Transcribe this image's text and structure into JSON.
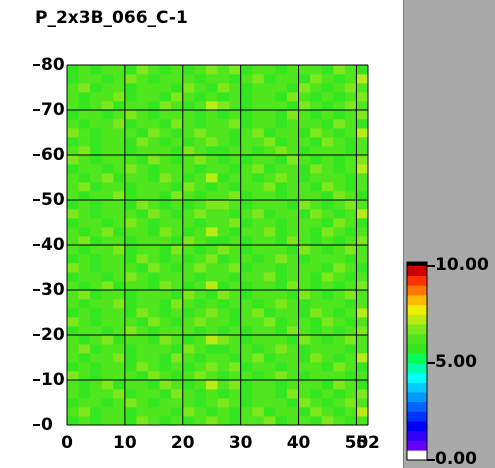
{
  "chart_data": {
    "type": "heatmap",
    "title": "P_2x3B_066_C-1",
    "xlim": [
      0,
      52
    ],
    "ylim": [
      0,
      80
    ],
    "xticks": [
      0,
      10,
      20,
      30,
      40,
      50,
      52
    ],
    "yticks": [
      0,
      10,
      20,
      30,
      40,
      50,
      60,
      70,
      80
    ],
    "grid": true,
    "clim": [
      0,
      10
    ],
    "cticks": [
      {
        "value": 0,
        "label": "0.00"
      },
      {
        "value": 5,
        "label": "5.00"
      },
      {
        "value": 10,
        "label": "10.00"
      }
    ],
    "colorscale": [
      "#ffffff",
      "#6600ff",
      "#3300ff",
      "#0000ff",
      "#0033ff",
      "#0066ff",
      "#0099ff",
      "#00ccff",
      "#00ffff",
      "#00ffaa",
      "#00ff55",
      "#33e620",
      "#4fe61e",
      "#7ee81c",
      "#b8ec14",
      "#eeee00",
      "#ffbb00",
      "#ff7700",
      "#ff3300",
      "#cc0000"
    ],
    "z": [
      [
        5.9,
        6.2,
        5.7,
        6.4,
        6.0,
        5.8,
        6.6,
        6.1,
        5.9,
        6.3,
        5.6,
        6.0,
        6.8,
        6.1,
        5.7,
        6.4,
        6.0,
        6.5,
        5.8,
        6.2,
        6.0,
        5.9,
        6.7,
        6.1,
        5.8,
        6.3
      ],
      [
        6.0,
        6.9,
        5.8,
        6.1,
        6.3,
        5.7,
        6.0,
        6.4,
        6.2,
        5.9,
        6.6,
        6.1,
        5.8,
        6.3,
        5.9,
        6.1,
        6.7,
        5.8,
        6.2,
        6.0,
        5.6,
        6.5,
        6.1,
        5.9,
        6.3,
        7.0
      ],
      [
        5.8,
        6.4,
        6.2,
        5.9,
        6.0,
        6.8,
        6.1,
        5.7,
        6.0,
        6.3,
        6.2,
        5.9,
        6.1,
        6.6,
        6.0,
        5.9,
        6.2,
        6.4,
        6.1,
        5.8,
        6.9,
        6.0,
        5.7,
        6.2,
        6.5,
        6.0
      ],
      [
        6.1,
        5.7,
        6.4,
        6.0,
        6.5,
        5.8,
        6.2,
        6.0,
        5.9,
        6.7,
        6.1,
        5.8,
        6.3,
        5.9,
        6.2,
        5.7,
        6.4,
        6.0,
        5.8,
        6.6,
        6.1,
        5.9,
        6.3,
        5.6,
        6.0,
        6.8
      ],
      [
        6.3,
        5.9,
        6.1,
        6.7,
        5.8,
        6.2,
        6.0,
        5.6,
        6.5,
        6.1,
        5.9,
        6.3,
        7.0,
        6.0,
        6.9,
        5.8,
        6.1,
        6.3,
        5.7,
        6.0,
        6.4,
        6.2,
        5.9,
        6.6,
        6.1,
        5.8
      ],
      [
        6.6,
        6.0,
        5.9,
        6.2,
        6.4,
        6.1,
        5.8,
        6.9,
        6.0,
        5.7,
        6.2,
        6.5,
        6.0,
        5.8,
        6.4,
        6.2,
        5.9,
        6.0,
        6.8,
        6.1,
        5.7,
        6.0,
        6.3,
        6.2,
        5.9,
        6.1
      ],
      [
        5.9,
        6.2,
        5.7,
        6.4,
        6.0,
        5.8,
        6.6,
        6.1,
        5.9,
        6.3,
        5.6,
        6.0,
        6.8,
        6.0,
        6.9,
        5.8,
        6.1,
        6.3,
        5.7,
        6.0,
        6.4,
        6.2,
        5.9,
        6.6,
        6.1,
        5.8
      ],
      [
        6.1,
        5.7,
        6.4,
        6.0,
        6.5,
        5.8,
        6.2,
        6.0,
        5.9,
        6.7,
        6.1,
        5.8,
        6.3,
        6.3,
        5.9,
        6.1,
        6.7,
        5.8,
        6.2,
        6.0,
        5.6,
        6.5,
        6.1,
        5.9,
        6.3,
        7.0
      ],
      [
        6.0,
        6.9,
        5.8,
        6.1,
        6.3,
        5.7,
        6.0,
        6.4,
        6.2,
        5.9,
        6.6,
        6.1,
        5.8,
        5.8,
        6.4,
        6.2,
        5.9,
        6.0,
        6.8,
        6.1,
        5.7,
        6.0,
        6.3,
        6.2,
        5.9,
        6.1
      ],
      [
        6.3,
        5.9,
        6.1,
        6.7,
        5.8,
        6.2,
        6.0,
        5.6,
        6.5,
        6.1,
        5.9,
        6.3,
        7.0,
        6.6,
        6.0,
        5.9,
        6.2,
        6.4,
        6.1,
        5.8,
        6.9,
        6.0,
        5.7,
        6.2,
        6.5,
        6.0
      ],
      [
        5.8,
        6.4,
        6.2,
        5.9,
        6.0,
        6.8,
        6.1,
        5.7,
        6.0,
        6.3,
        6.2,
        5.9,
        6.1,
        5.9,
        6.2,
        5.7,
        6.4,
        6.0,
        5.8,
        6.6,
        6.1,
        5.9,
        6.3,
        5.6,
        6.0,
        6.8
      ],
      [
        6.6,
        6.0,
        5.9,
        6.2,
        6.4,
        6.1,
        5.8,
        6.9,
        6.0,
        5.7,
        6.2,
        6.5,
        6.0,
        6.1,
        5.7,
        6.4,
        6.0,
        6.5,
        5.8,
        6.2,
        6.0,
        5.9,
        6.7,
        6.1,
        5.8,
        6.3
      ],
      [
        5.9,
        6.2,
        5.7,
        6.4,
        6.0,
        5.8,
        6.6,
        6.1,
        5.9,
        6.3,
        5.6,
        6.0,
        6.8,
        6.3,
        5.9,
        6.1,
        6.7,
        5.8,
        6.2,
        6.0,
        5.6,
        6.5,
        6.1,
        5.9,
        6.3,
        7.0
      ],
      [
        6.1,
        5.7,
        6.4,
        6.0,
        6.5,
        5.8,
        6.2,
        6.0,
        5.9,
        6.7,
        6.1,
        5.8,
        6.3,
        5.8,
        6.4,
        6.2,
        5.9,
        6.0,
        6.8,
        6.1,
        5.7,
        6.0,
        6.3,
        6.2,
        5.9,
        6.1
      ],
      [
        6.0,
        6.9,
        5.8,
        6.1,
        6.3,
        5.7,
        6.0,
        6.4,
        6.2,
        5.9,
        6.6,
        6.1,
        5.8,
        6.6,
        6.0,
        5.9,
        6.2,
        6.4,
        6.1,
        5.8,
        6.9,
        6.0,
        5.7,
        6.2,
        6.5,
        6.0
      ],
      [
        6.3,
        5.9,
        6.1,
        6.7,
        5.8,
        6.2,
        6.0,
        5.6,
        6.5,
        6.1,
        5.9,
        6.3,
        7.0,
        5.9,
        6.2,
        5.7,
        6.4,
        6.0,
        5.8,
        6.6,
        6.1,
        5.9,
        6.3,
        5.6,
        6.0,
        6.8
      ],
      [
        5.8,
        6.4,
        6.2,
        5.9,
        6.0,
        6.8,
        6.1,
        5.7,
        6.0,
        6.3,
        6.2,
        5.9,
        6.1,
        6.1,
        5.7,
        6.4,
        6.0,
        6.5,
        5.8,
        6.2,
        6.0,
        5.9,
        6.7,
        6.1,
        5.8,
        6.3
      ],
      [
        6.6,
        6.0,
        5.9,
        6.2,
        6.4,
        6.1,
        5.8,
        6.9,
        6.0,
        5.7,
        6.2,
        6.5,
        6.0,
        6.0,
        6.9,
        5.8,
        6.1,
        6.3,
        5.7,
        6.0,
        6.4,
        6.2,
        5.9,
        6.6,
        6.1,
        5.8
      ],
      [
        5.9,
        6.2,
        5.7,
        6.4,
        6.0,
        5.8,
        6.6,
        6.1,
        5.9,
        6.3,
        5.6,
        6.0,
        6.8,
        5.8,
        6.4,
        6.2,
        5.9,
        6.0,
        6.8,
        6.1,
        5.7,
        6.0,
        6.3,
        6.2,
        5.9,
        6.1
      ],
      [
        6.1,
        5.7,
        6.4,
        6.0,
        6.5,
        5.8,
        6.2,
        6.0,
        5.9,
        6.7,
        6.1,
        5.8,
        6.3,
        6.6,
        6.0,
        5.9,
        6.2,
        6.4,
        6.1,
        5.8,
        6.9,
        6.0,
        5.7,
        6.2,
        6.5,
        6.0
      ],
      [
        6.0,
        6.9,
        5.8,
        6.1,
        6.3,
        5.7,
        6.0,
        6.4,
        6.2,
        5.9,
        6.6,
        6.1,
        5.8,
        5.9,
        6.2,
        5.7,
        6.4,
        6.0,
        5.8,
        6.6,
        6.1,
        5.9,
        6.3,
        5.6,
        6.0,
        6.8
      ],
      [
        6.3,
        5.9,
        6.1,
        6.7,
        5.8,
        6.2,
        6.0,
        5.6,
        6.5,
        6.1,
        5.9,
        6.3,
        7.0,
        6.1,
        5.7,
        6.4,
        6.0,
        6.5,
        5.8,
        6.2,
        6.0,
        5.9,
        6.7,
        6.1,
        5.8,
        6.3
      ],
      [
        5.8,
        6.4,
        6.2,
        5.9,
        6.0,
        6.8,
        6.1,
        5.7,
        6.0,
        6.3,
        6.2,
        5.9,
        6.1,
        6.0,
        6.9,
        5.8,
        6.1,
        6.3,
        5.7,
        6.0,
        6.4,
        6.2,
        5.9,
        6.6,
        6.1,
        5.8
      ],
      [
        6.6,
        6.0,
        5.9,
        6.2,
        6.4,
        6.1,
        5.8,
        6.9,
        6.0,
        5.7,
        6.2,
        6.5,
        6.0,
        6.3,
        5.9,
        6.1,
        6.7,
        5.8,
        6.2,
        6.0,
        5.6,
        6.5,
        6.1,
        5.9,
        6.3,
        7.0
      ],
      [
        5.9,
        6.2,
        5.7,
        6.4,
        6.0,
        5.8,
        6.6,
        6.1,
        5.9,
        6.3,
        5.6,
        6.0,
        6.8,
        6.6,
        6.0,
        5.9,
        6.2,
        6.4,
        6.1,
        5.8,
        6.9,
        6.0,
        5.7,
        6.2,
        6.5,
        6.0
      ],
      [
        6.1,
        5.7,
        6.4,
        6.0,
        6.5,
        5.8,
        6.2,
        6.0,
        5.9,
        6.7,
        6.1,
        5.8,
        6.3,
        6.0,
        6.9,
        5.8,
        6.1,
        6.3,
        5.7,
        6.0,
        6.4,
        6.2,
        5.9,
        6.6,
        6.1,
        5.8
      ],
      [
        6.0,
        6.9,
        5.8,
        6.1,
        6.3,
        5.7,
        6.0,
        6.4,
        6.2,
        5.9,
        6.6,
        6.1,
        5.8,
        6.1,
        5.7,
        6.4,
        6.0,
        6.5,
        5.8,
        6.2,
        6.0,
        5.9,
        6.7,
        6.1,
        5.8,
        6.3
      ],
      [
        6.3,
        5.9,
        6.1,
        6.7,
        5.8,
        6.2,
        6.0,
        5.6,
        6.5,
        6.1,
        5.9,
        6.3,
        7.0,
        5.8,
        6.4,
        6.2,
        5.9,
        6.0,
        6.8,
        6.1,
        5.7,
        6.0,
        6.3,
        6.2,
        5.9,
        6.1
      ],
      [
        5.8,
        6.4,
        6.2,
        5.9,
        6.0,
        6.8,
        6.1,
        5.7,
        6.0,
        6.3,
        6.2,
        5.9,
        6.1,
        6.3,
        5.9,
        6.1,
        6.7,
        5.8,
        6.2,
        6.0,
        5.6,
        6.5,
        6.1,
        5.9,
        6.3,
        7.0
      ],
      [
        6.6,
        6.0,
        5.9,
        6.2,
        6.4,
        6.1,
        5.8,
        6.9,
        6.0,
        5.7,
        6.2,
        6.5,
        6.0,
        5.9,
        6.2,
        5.7,
        6.4,
        6.0,
        5.8,
        6.6,
        6.1,
        5.9,
        6.3,
        5.6,
        6.0,
        6.8
      ],
      [
        6.0,
        6.9,
        5.8,
        6.1,
        6.3,
        5.7,
        6.0,
        6.4,
        6.2,
        5.9,
        6.6,
        6.1,
        5.8,
        5.8,
        6.4,
        6.2,
        5.9,
        6.0,
        6.8,
        6.1,
        5.7,
        6.0,
        6.3,
        6.2,
        5.9,
        6.1
      ],
      [
        5.9,
        6.2,
        5.7,
        6.4,
        6.0,
        5.8,
        6.6,
        6.1,
        5.9,
        6.3,
        5.6,
        6.0,
        6.8,
        6.1,
        5.7,
        6.4,
        6.0,
        6.5,
        5.8,
        6.2,
        6.0,
        5.9,
        6.7,
        6.1,
        5.8,
        6.3
      ],
      [
        6.6,
        6.0,
        5.9,
        6.2,
        6.4,
        6.1,
        5.8,
        6.9,
        6.0,
        5.7,
        6.2,
        6.5,
        6.0,
        6.3,
        5.9,
        6.1,
        6.7,
        5.8,
        6.2,
        6.0,
        5.6,
        6.5,
        6.1,
        5.9,
        6.3,
        7.0
      ],
      [
        6.1,
        5.7,
        6.4,
        6.0,
        6.5,
        5.8,
        6.2,
        6.0,
        5.9,
        6.7,
        6.1,
        5.8,
        6.3,
        6.0,
        6.9,
        5.8,
        6.1,
        6.3,
        5.7,
        6.0,
        6.4,
        6.2,
        5.9,
        6.6,
        6.1,
        5.8
      ],
      [
        5.8,
        6.4,
        6.2,
        5.9,
        6.0,
        6.8,
        6.1,
        5.7,
        6.0,
        6.3,
        6.2,
        5.9,
        6.1,
        5.9,
        6.2,
        5.7,
        6.4,
        6.0,
        5.8,
        6.6,
        6.1,
        5.9,
        6.3,
        5.6,
        6.0,
        6.8
      ],
      [
        6.3,
        5.9,
        6.1,
        6.7,
        5.8,
        6.2,
        6.0,
        5.6,
        6.5,
        6.1,
        5.9,
        6.3,
        7.0,
        6.6,
        6.0,
        5.9,
        6.2,
        6.4,
        6.1,
        5.8,
        6.9,
        6.0,
        5.7,
        6.2,
        6.5,
        6.0
      ],
      [
        6.1,
        5.7,
        6.4,
        6.0,
        6.5,
        5.8,
        6.2,
        6.0,
        5.9,
        6.7,
        6.1,
        5.8,
        6.3,
        5.9,
        6.2,
        5.7,
        6.4,
        6.0,
        5.8,
        6.6,
        6.1,
        5.9,
        6.3,
        5.6,
        6.0,
        6.8
      ],
      [
        6.0,
        6.9,
        5.8,
        6.1,
        6.3,
        5.7,
        6.0,
        6.4,
        6.2,
        5.9,
        6.6,
        6.1,
        5.8,
        6.6,
        6.0,
        5.9,
        6.2,
        6.4,
        6.1,
        5.8,
        6.9,
        6.0,
        5.7,
        6.2,
        6.5,
        6.0
      ],
      [
        5.8,
        6.4,
        6.2,
        5.9,
        6.0,
        6.8,
        6.1,
        5.7,
        6.0,
        6.3,
        6.2,
        5.9,
        6.1,
        6.3,
        5.9,
        6.1,
        6.7,
        5.8,
        6.2,
        6.0,
        5.6,
        6.5,
        6.1,
        5.9,
        6.3,
        7.0
      ],
      [
        5.9,
        6.2,
        5.7,
        6.4,
        6.0,
        5.8,
        6.6,
        6.1,
        5.9,
        6.3,
        5.6,
        6.0,
        6.8,
        6.0,
        6.9,
        5.8,
        6.1,
        6.3,
        5.7,
        6.0,
        6.4,
        6.2,
        5.9,
        6.6,
        6.1,
        5.8
      ]
    ]
  }
}
